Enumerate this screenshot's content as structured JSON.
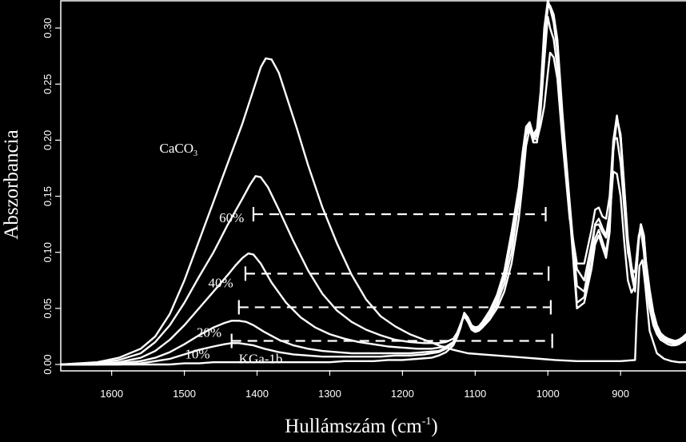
{
  "chart_data": {
    "type": "line",
    "xlabel": "Hullámszám (cm",
    "xlabel_sup": "-1",
    "xlabel_close": ")",
    "ylabel": "Abszorbancia",
    "xlim": [
      1670,
      810
    ],
    "ylim": [
      -0.005,
      0.325
    ],
    "x_reversed": true,
    "grid": false,
    "legend": "none",
    "x_ticks": [
      1600,
      1500,
      1400,
      1300,
      1200,
      1100,
      1000,
      900
    ],
    "x_tick_labels": [
      "1600",
      "1500",
      "1400",
      "1300",
      "1200",
      "1100",
      "1000",
      "900"
    ],
    "y_ticks": [
      0,
      0.05,
      0.1,
      0.15,
      0.2,
      0.25,
      0.3
    ],
    "y_tick_labels": [
      "0.00",
      "0.05",
      "0.10",
      "0.15",
      "0.20",
      "0.25",
      "0.30"
    ],
    "annotations": [
      {
        "label": "CaCO",
        "sub": "3",
        "x": 1508,
        "y": 0.193
      },
      {
        "label": "60%",
        "x": 1435,
        "y": 0.131
      },
      {
        "label": "40%",
        "x": 1450,
        "y": 0.073
      },
      {
        "label": "20%",
        "x": 1466,
        "y": 0.029
      },
      {
        "label": "10%",
        "x": 1482,
        "y": 0.0095
      },
      {
        "label": "KGa-1b",
        "x": 1395,
        "y": 0.0055
      }
    ],
    "dashed_levels": [
      {
        "y": 0.134,
        "x_start": 1405,
        "x_end": 1003
      },
      {
        "y": 0.081,
        "x_start": 1416,
        "x_end": 999
      },
      {
        "y": 0.051,
        "x_start": 1425,
        "x_end": 996
      },
      {
        "y": 0.021,
        "x_start": 1435,
        "x_end": 994
      }
    ],
    "series": [
      {
        "name": "CaCO3",
        "x": [
          1670,
          1620,
          1590,
          1560,
          1540,
          1520,
          1500,
          1480,
          1460,
          1440,
          1420,
          1405,
          1395,
          1388,
          1380,
          1370,
          1360,
          1345,
          1330,
          1310,
          1290,
          1270,
          1250,
          1230,
          1210,
          1190,
          1170,
          1150,
          1130,
          1110,
          1090,
          1070,
          1050,
          1030,
          1010,
          990,
          960,
          930,
          900,
          880,
          878,
          874,
          870,
          866,
          860,
          850,
          840,
          830,
          820,
          810
        ],
        "y": [
          0.0,
          0.002,
          0.006,
          0.014,
          0.025,
          0.045,
          0.075,
          0.11,
          0.145,
          0.18,
          0.215,
          0.245,
          0.265,
          0.273,
          0.272,
          0.26,
          0.24,
          0.21,
          0.178,
          0.14,
          0.108,
          0.08,
          0.058,
          0.043,
          0.034,
          0.027,
          0.022,
          0.017,
          0.013,
          0.01,
          0.009,
          0.008,
          0.007,
          0.006,
          0.005,
          0.004,
          0.003,
          0.003,
          0.003,
          0.004,
          0.04,
          0.088,
          0.093,
          0.07,
          0.03,
          0.01,
          0.005,
          0.003,
          0.002,
          0.002
        ]
      },
      {
        "name": "60%",
        "x": [
          1670,
          1620,
          1590,
          1560,
          1540,
          1520,
          1500,
          1480,
          1460,
          1440,
          1420,
          1410,
          1402,
          1395,
          1385,
          1370,
          1350,
          1330,
          1310,
          1290,
          1270,
          1250,
          1230,
          1210,
          1190,
          1170,
          1150,
          1140,
          1130,
          1125,
          1120,
          1115,
          1110,
          1105,
          1100,
          1095,
          1090,
          1080,
          1070,
          1060,
          1050,
          1040,
          1035,
          1030,
          1025,
          1020,
          1015,
          1010,
          1005,
          1000,
          997,
          992,
          987,
          980,
          970,
          960,
          950,
          940,
          935,
          930,
          925,
          920,
          915,
          910,
          905,
          900,
          895,
          890,
          885,
          880,
          875,
          872,
          868,
          865,
          860,
          855,
          850,
          845,
          840,
          835,
          830,
          825,
          820,
          815,
          810
        ],
        "y": [
          0.0,
          0.001,
          0.004,
          0.01,
          0.02,
          0.035,
          0.055,
          0.078,
          0.1,
          0.125,
          0.148,
          0.16,
          0.168,
          0.167,
          0.158,
          0.138,
          0.11,
          0.084,
          0.063,
          0.048,
          0.038,
          0.031,
          0.026,
          0.022,
          0.02,
          0.019,
          0.019,
          0.02,
          0.023,
          0.028,
          0.036,
          0.043,
          0.038,
          0.031,
          0.029,
          0.03,
          0.033,
          0.04,
          0.05,
          0.065,
          0.09,
          0.13,
          0.16,
          0.195,
          0.21,
          0.203,
          0.2,
          0.213,
          0.23,
          0.26,
          0.278,
          0.274,
          0.255,
          0.2,
          0.13,
          0.09,
          0.09,
          0.12,
          0.138,
          0.14,
          0.132,
          0.13,
          0.15,
          0.2,
          0.202,
          0.18,
          0.14,
          0.1,
          0.085,
          0.082,
          0.115,
          0.12,
          0.1,
          0.075,
          0.05,
          0.035,
          0.027,
          0.022,
          0.02,
          0.018,
          0.017,
          0.017,
          0.018,
          0.02,
          0.022
        ]
      },
      {
        "name": "40%",
        "x": [
          1670,
          1620,
          1590,
          1560,
          1540,
          1520,
          1500,
          1480,
          1460,
          1440,
          1430,
          1420,
          1412,
          1405,
          1395,
          1380,
          1360,
          1340,
          1320,
          1300,
          1280,
          1260,
          1240,
          1220,
          1200,
          1180,
          1160,
          1140,
          1130,
          1125,
          1120,
          1115,
          1110,
          1105,
          1100,
          1095,
          1090,
          1080,
          1070,
          1060,
          1050,
          1040,
          1035,
          1030,
          1025,
          1020,
          1015,
          1010,
          1005,
          1000,
          997,
          992,
          987,
          980,
          970,
          960,
          950,
          940,
          935,
          930,
          925,
          920,
          915,
          910,
          905,
          900,
          895,
          890,
          885,
          880,
          875,
          872,
          868,
          865,
          860,
          855,
          850,
          845,
          840,
          835,
          830,
          825,
          820,
          815,
          810
        ],
        "y": [
          0.0,
          0.0,
          0.002,
          0.006,
          0.012,
          0.022,
          0.035,
          0.05,
          0.065,
          0.08,
          0.088,
          0.095,
          0.099,
          0.098,
          0.09,
          0.073,
          0.055,
          0.042,
          0.033,
          0.027,
          0.023,
          0.02,
          0.018,
          0.016,
          0.015,
          0.014,
          0.014,
          0.016,
          0.02,
          0.027,
          0.036,
          0.044,
          0.039,
          0.032,
          0.03,
          0.031,
          0.034,
          0.042,
          0.054,
          0.072,
          0.1,
          0.145,
          0.175,
          0.205,
          0.21,
          0.198,
          0.198,
          0.225,
          0.27,
          0.31,
          0.3,
          0.29,
          0.265,
          0.205,
          0.135,
          0.085,
          0.075,
          0.107,
          0.124,
          0.125,
          0.118,
          0.113,
          0.13,
          0.172,
          0.17,
          0.15,
          0.11,
          0.075,
          0.064,
          0.07,
          0.112,
          0.123,
          0.11,
          0.085,
          0.06,
          0.04,
          0.03,
          0.024,
          0.022,
          0.02,
          0.019,
          0.018,
          0.019,
          0.021,
          0.024
        ]
      },
      {
        "name": "20%",
        "x": [
          1670,
          1620,
          1590,
          1560,
          1540,
          1520,
          1500,
          1480,
          1460,
          1445,
          1435,
          1425,
          1415,
          1405,
          1390,
          1370,
          1350,
          1330,
          1310,
          1290,
          1270,
          1250,
          1230,
          1210,
          1190,
          1170,
          1150,
          1140,
          1130,
          1125,
          1120,
          1115,
          1110,
          1105,
          1100,
          1095,
          1090,
          1080,
          1070,
          1060,
          1050,
          1040,
          1035,
          1030,
          1025,
          1020,
          1015,
          1010,
          1005,
          1000,
          997,
          992,
          987,
          980,
          970,
          960,
          950,
          940,
          935,
          930,
          925,
          920,
          915,
          910,
          905,
          900,
          895,
          890,
          885,
          880,
          875,
          872,
          868,
          865,
          860,
          855,
          850,
          845,
          840,
          835,
          830,
          825,
          820,
          815,
          810
        ],
        "y": [
          0.0,
          0.0,
          0.001,
          0.003,
          0.006,
          0.011,
          0.018,
          0.026,
          0.033,
          0.037,
          0.039,
          0.039,
          0.038,
          0.035,
          0.029,
          0.022,
          0.017,
          0.014,
          0.012,
          0.011,
          0.01,
          0.01,
          0.01,
          0.01,
          0.01,
          0.011,
          0.012,
          0.015,
          0.02,
          0.027,
          0.036,
          0.045,
          0.04,
          0.033,
          0.031,
          0.032,
          0.036,
          0.045,
          0.058,
          0.078,
          0.11,
          0.15,
          0.18,
          0.208,
          0.213,
          0.2,
          0.205,
          0.235,
          0.29,
          0.318,
          0.32,
          0.312,
          0.29,
          0.225,
          0.145,
          0.07,
          0.065,
          0.1,
          0.125,
          0.13,
          0.122,
          0.115,
          0.135,
          0.2,
          0.222,
          0.2,
          0.155,
          0.105,
          0.08,
          0.065,
          0.11,
          0.125,
          0.115,
          0.09,
          0.065,
          0.044,
          0.033,
          0.026,
          0.023,
          0.021,
          0.02,
          0.019,
          0.02,
          0.022,
          0.025
        ]
      },
      {
        "name": "10%",
        "x": [
          1670,
          1620,
          1590,
          1560,
          1540,
          1520,
          1500,
          1480,
          1460,
          1445,
          1435,
          1425,
          1415,
          1405,
          1390,
          1370,
          1350,
          1330,
          1310,
          1290,
          1270,
          1250,
          1230,
          1210,
          1190,
          1170,
          1150,
          1140,
          1130,
          1125,
          1120,
          1115,
          1110,
          1105,
          1100,
          1095,
          1090,
          1080,
          1070,
          1060,
          1050,
          1040,
          1035,
          1030,
          1025,
          1020,
          1015,
          1010,
          1005,
          1000,
          997,
          992,
          987,
          980,
          970,
          960,
          950,
          940,
          935,
          930,
          925,
          920,
          915,
          910,
          905,
          900,
          895,
          890,
          885,
          880,
          875,
          872,
          868,
          865,
          860,
          855,
          850,
          845,
          840,
          835,
          830,
          825,
          820,
          815,
          810
        ],
        "y": [
          0.0,
          0.0,
          0.0,
          0.001,
          0.003,
          0.005,
          0.009,
          0.013,
          0.016,
          0.018,
          0.019,
          0.019,
          0.018,
          0.017,
          0.014,
          0.011,
          0.009,
          0.008,
          0.007,
          0.007,
          0.007,
          0.007,
          0.007,
          0.008,
          0.008,
          0.009,
          0.011,
          0.014,
          0.019,
          0.026,
          0.035,
          0.046,
          0.041,
          0.034,
          0.032,
          0.033,
          0.037,
          0.046,
          0.06,
          0.08,
          0.115,
          0.155,
          0.185,
          0.21,
          0.215,
          0.203,
          0.208,
          0.24,
          0.295,
          0.322,
          0.318,
          0.305,
          0.28,
          0.215,
          0.14,
          0.055,
          0.06,
          0.09,
          0.112,
          0.12,
          0.11,
          0.1,
          0.122,
          0.195,
          0.22,
          0.205,
          0.158,
          0.11,
          0.085,
          0.068,
          0.112,
          0.125,
          0.115,
          0.09,
          0.065,
          0.045,
          0.034,
          0.027,
          0.024,
          0.022,
          0.021,
          0.02,
          0.021,
          0.023,
          0.026
        ]
      },
      {
        "name": "KGa-1b",
        "x": [
          1670,
          1620,
          1590,
          1560,
          1540,
          1520,
          1500,
          1480,
          1460,
          1440,
          1420,
          1400,
          1380,
          1360,
          1340,
          1320,
          1300,
          1280,
          1260,
          1240,
          1220,
          1200,
          1180,
          1160,
          1150,
          1140,
          1130,
          1125,
          1120,
          1115,
          1110,
          1105,
          1100,
          1095,
          1090,
          1080,
          1070,
          1060,
          1050,
          1040,
          1035,
          1030,
          1025,
          1020,
          1015,
          1010,
          1005,
          1000,
          997,
          992,
          987,
          980,
          970,
          960,
          950,
          940,
          935,
          930,
          925,
          920,
          915,
          910,
          905,
          900,
          895,
          890,
          885,
          880,
          875,
          872,
          868,
          865,
          860,
          855,
          850,
          845,
          840,
          835,
          830,
          825,
          820,
          815,
          810
        ],
        "y": [
          0.0,
          0.0,
          0.0,
          0.0,
          0.0,
          0.0,
          0.001,
          0.001,
          0.002,
          0.002,
          0.002,
          0.002,
          0.002,
          0.002,
          0.002,
          0.002,
          0.002,
          0.003,
          0.003,
          0.003,
          0.004,
          0.004,
          0.005,
          0.006,
          0.008,
          0.011,
          0.017,
          0.024,
          0.033,
          0.046,
          0.042,
          0.035,
          0.033,
          0.034,
          0.038,
          0.048,
          0.062,
          0.083,
          0.118,
          0.158,
          0.188,
          0.212,
          0.216,
          0.205,
          0.21,
          0.243,
          0.3,
          0.325,
          0.318,
          0.305,
          0.28,
          0.213,
          0.135,
          0.05,
          0.055,
          0.085,
          0.107,
          0.115,
          0.105,
          0.095,
          0.118,
          0.19,
          0.218,
          0.205,
          0.16,
          0.112,
          0.088,
          0.07,
          0.113,
          0.125,
          0.115,
          0.092,
          0.067,
          0.047,
          0.035,
          0.028,
          0.025,
          0.023,
          0.022,
          0.021,
          0.022,
          0.024,
          0.027
        ]
      }
    ]
  }
}
